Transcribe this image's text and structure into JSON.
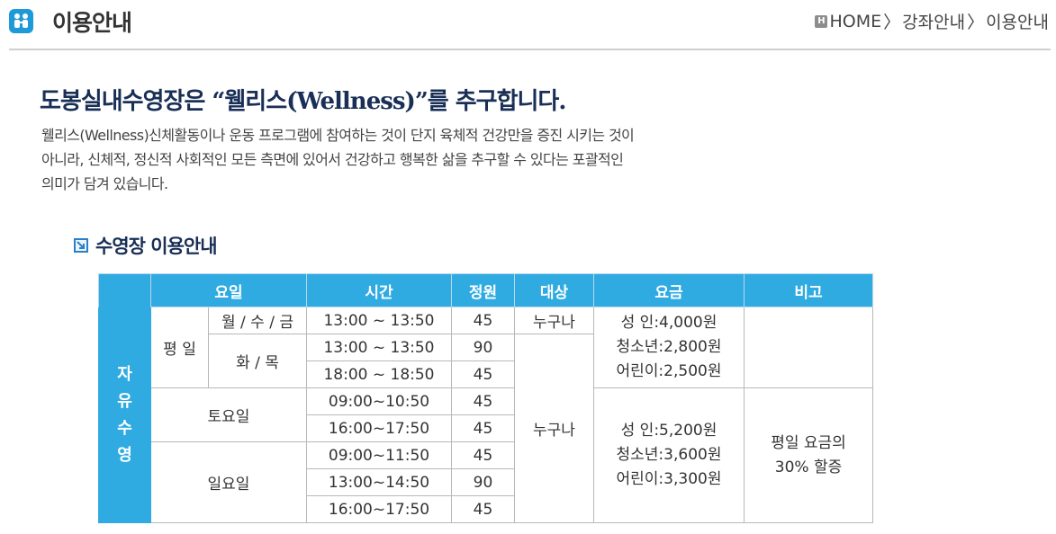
{
  "header": {
    "title": "이용안내",
    "breadcrumb": [
      {
        "label": "HOME"
      },
      {
        "label": "강좌안내"
      },
      {
        "label": "이용안내"
      }
    ],
    "home_icon_letter": "H"
  },
  "intro": {
    "headline": "도봉실내수영장은  “웰리스(Wellness)”를 추구합니다.",
    "lines": [
      "웰리스(Wellness)신체활동이나 운동 프로그램에 참여하는 것이 단지 육체적 건강만을 증진 시키는 것이",
      "아니라, 신체적, 정신적 사회적인 모든 측면에 있어서 건강하고 행복한 삶을 추구할 수 있다는 포괄적인",
      "의미가 담겨 있습니다."
    ]
  },
  "section": {
    "title": "수영장 이용안내"
  },
  "table": {
    "headers": {
      "day": "요일",
      "time": "시간",
      "capacity": "정원",
      "target": "대상",
      "fee": "요금",
      "note": "비고"
    },
    "side_label": [
      "자",
      "유",
      "수",
      "영"
    ],
    "weekday_label": "평 일",
    "mwf_label": "월 / 수 / 금",
    "tt_label": "화 / 목",
    "saturday_label": "토요일",
    "sunday_label": "일요일",
    "rows": [
      {
        "time": "13:00 ~ 13:50",
        "capacity": "45"
      },
      {
        "time": "13:00 ~ 13:50",
        "capacity": "90"
      },
      {
        "time": "18:00 ~ 18:50",
        "capacity": "45"
      },
      {
        "time": "09:00~10:50",
        "capacity": "45"
      },
      {
        "time": "16:00~17:50",
        "capacity": "45"
      },
      {
        "time": "09:00~11:50",
        "capacity": "45"
      },
      {
        "time": "13:00~14:50",
        "capacity": "90"
      },
      {
        "time": "16:00~17:50",
        "capacity": "45"
      }
    ],
    "target_1": "누구나",
    "target_2": "누구나",
    "fee_weekday": [
      "성  인:4,000원",
      "청소년:2,800원",
      "어린이:2,500원"
    ],
    "fee_weekend": [
      "성  인:5,200원",
      "청소년:3,600원",
      "어린이:3,300원"
    ],
    "note_weekend": [
      "평일 요금의",
      "30% 할증"
    ]
  },
  "colors": {
    "accent": "#30abe2",
    "heading": "#1a2f56"
  }
}
